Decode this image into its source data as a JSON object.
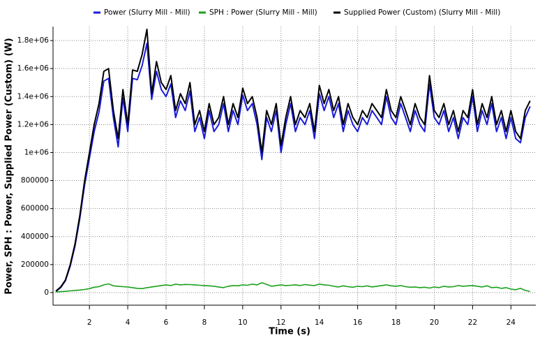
{
  "chart_data": {
    "type": "line",
    "x_label": "Time (s)",
    "y_label": "Power, SPH : Power, Supplied Power (Custom) (W)",
    "xlim": [
      0.1,
      25.3
    ],
    "xticks": [
      2,
      4,
      6,
      8,
      10,
      12,
      14,
      16,
      18,
      20,
      22,
      24
    ],
    "ylim": [
      -90000,
      1900000
    ],
    "yticks": [
      0,
      200000,
      400000,
      600000,
      800000,
      {
        "value": 1000000,
        "label": "1e+06"
      },
      {
        "value": 1200000,
        "label": "1.2e+06"
      },
      {
        "value": 1400000,
        "label": "1.4e+06"
      },
      {
        "value": 1600000,
        "label": "1.6e+06"
      },
      {
        "value": 1800000,
        "label": "1.8e+06"
      }
    ],
    "grid": true,
    "legend": "top",
    "x": [
      0.25,
      0.5,
      0.75,
      1,
      1.25,
      1.5,
      1.75,
      2,
      2.25,
      2.5,
      2.75,
      3,
      3.25,
      3.5,
      3.75,
      4,
      4.25,
      4.5,
      4.75,
      5,
      5.25,
      5.5,
      5.75,
      6,
      6.25,
      6.5,
      6.75,
      7,
      7.25,
      7.5,
      7.75,
      8,
      8.25,
      8.5,
      8.75,
      9,
      9.25,
      9.5,
      9.75,
      10,
      10.25,
      10.5,
      10.75,
      11,
      11.25,
      11.5,
      11.75,
      12,
      12.25,
      12.5,
      12.75,
      13,
      13.25,
      13.5,
      13.75,
      14,
      14.25,
      14.5,
      14.75,
      15,
      15.25,
      15.5,
      15.75,
      16,
      16.25,
      16.5,
      16.75,
      17,
      17.25,
      17.5,
      17.75,
      18,
      18.25,
      18.5,
      18.75,
      19,
      19.25,
      19.5,
      19.75,
      20,
      20.25,
      20.5,
      20.75,
      21,
      21.25,
      21.5,
      21.75,
      22,
      22.25,
      22.5,
      22.75,
      23,
      23.25,
      23.5,
      23.75,
      24,
      24.25,
      24.5,
      24.75,
      25
    ],
    "series": [
      {
        "name": "Power (Slurry Mill - Mill)",
        "color": "#1a1adb",
        "width": 2,
        "values": [
          8000,
          35000,
          85000,
          190000,
          335000,
          530000,
          770000,
          960000,
          1150000,
          1290000,
          1510000,
          1530000,
          1250000,
          1040000,
          1390000,
          1150000,
          1530000,
          1520000,
          1620000,
          1780000,
          1380000,
          1580000,
          1450000,
          1400000,
          1490000,
          1250000,
          1370000,
          1300000,
          1440000,
          1150000,
          1250000,
          1100000,
          1300000,
          1150000,
          1200000,
          1350000,
          1150000,
          1300000,
          1200000,
          1410000,
          1300000,
          1350000,
          1200000,
          950000,
          1250000,
          1150000,
          1300000,
          1000000,
          1200000,
          1350000,
          1150000,
          1250000,
          1200000,
          1300000,
          1100000,
          1420000,
          1300000,
          1400000,
          1250000,
          1350000,
          1150000,
          1300000,
          1200000,
          1150000,
          1250000,
          1200000,
          1300000,
          1250000,
          1200000,
          1400000,
          1250000,
          1200000,
          1350000,
          1250000,
          1150000,
          1300000,
          1200000,
          1150000,
          1490000,
          1250000,
          1200000,
          1300000,
          1150000,
          1250000,
          1100000,
          1250000,
          1200000,
          1400000,
          1150000,
          1300000,
          1200000,
          1350000,
          1150000,
          1250000,
          1100000,
          1250000,
          1100000,
          1070000,
          1250000,
          1330000
        ]
      },
      {
        "name": "SPH : Power (Slurry Mill - Mill)",
        "color": "#1aa01a",
        "width": 1.6,
        "values": [
          5000,
          7000,
          9000,
          12000,
          15000,
          18000,
          22000,
          28000,
          38000,
          42000,
          55000,
          62000,
          48000,
          45000,
          42000,
          40000,
          35000,
          30000,
          28000,
          35000,
          40000,
          45000,
          50000,
          55000,
          50000,
          60000,
          55000,
          58000,
          57000,
          55000,
          52000,
          50000,
          48000,
          45000,
          40000,
          35000,
          45000,
          50000,
          48000,
          55000,
          52000,
          60000,
          55000,
          70000,
          58000,
          45000,
          50000,
          55000,
          50000,
          52000,
          55000,
          50000,
          57000,
          53000,
          50000,
          60000,
          55000,
          52000,
          45000,
          40000,
          48000,
          42000,
          38000,
          45000,
          42000,
          48000,
          40000,
          45000,
          50000,
          55000,
          48000,
          45000,
          50000,
          42000,
          38000,
          40000,
          35000,
          38000,
          32000,
          40000,
          35000,
          45000,
          40000,
          42000,
          50000,
          45000,
          48000,
          50000,
          45000,
          40000,
          48000,
          35000,
          38000,
          30000,
          35000,
          25000,
          20000,
          30000,
          15000,
          8000
        ]
      },
      {
        "name": "Supplied Power (Custom) (Slurry Mill - Mill)",
        "color": "#000000",
        "width": 2,
        "values": [
          10000,
          40000,
          90000,
          200000,
          350000,
          550000,
          800000,
          1000000,
          1200000,
          1350000,
          1580000,
          1600000,
          1300000,
          1100000,
          1450000,
          1200000,
          1590000,
          1580000,
          1700000,
          1880000,
          1420000,
          1650000,
          1500000,
          1450000,
          1550000,
          1300000,
          1420000,
          1350000,
          1500000,
          1200000,
          1300000,
          1150000,
          1350000,
          1200000,
          1250000,
          1400000,
          1200000,
          1350000,
          1250000,
          1460000,
          1350000,
          1400000,
          1250000,
          1000000,
          1300000,
          1200000,
          1350000,
          1050000,
          1250000,
          1400000,
          1200000,
          1300000,
          1250000,
          1350000,
          1150000,
          1480000,
          1350000,
          1450000,
          1300000,
          1400000,
          1200000,
          1350000,
          1250000,
          1200000,
          1300000,
          1250000,
          1350000,
          1300000,
          1250000,
          1450000,
          1300000,
          1250000,
          1400000,
          1300000,
          1200000,
          1350000,
          1250000,
          1200000,
          1550000,
          1300000,
          1250000,
          1350000,
          1200000,
          1300000,
          1150000,
          1300000,
          1250000,
          1450000,
          1200000,
          1350000,
          1250000,
          1400000,
          1200000,
          1300000,
          1150000,
          1300000,
          1150000,
          1100000,
          1300000,
          1370000
        ]
      }
    ]
  }
}
